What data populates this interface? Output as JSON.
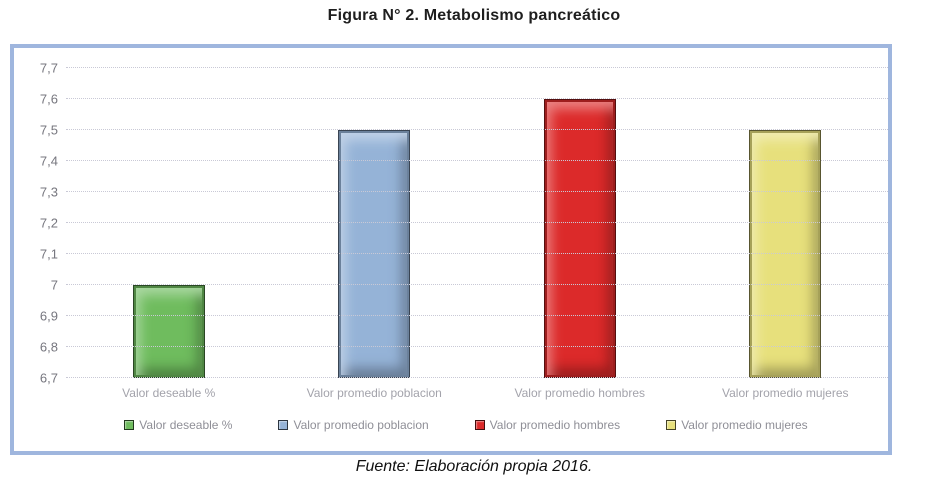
{
  "title": "Figura N° 2. Metabolismo pancreático",
  "source": "Fuente: Elaboración propia 2016.",
  "chart_data": {
    "type": "bar",
    "title": "Figura N° 2. Metabolismo pancreático",
    "categories": [
      "Valor deseable %",
      "Valor promedio poblacion",
      "Valor promedio hombres",
      "Valor promedio mujeres"
    ],
    "values": [
      7.0,
      7.5,
      7.6,
      7.5
    ],
    "series_colors": [
      "#6fbc5e",
      "#95b3d7",
      "#dc2a2a",
      "#e7e07c"
    ],
    "ylim": [
      6.7,
      7.7
    ],
    "yticks": [
      {
        "value": 7.7,
        "label": "7,7"
      },
      {
        "value": 7.6,
        "label": "7,6"
      },
      {
        "value": 7.5,
        "label": "7,5"
      },
      {
        "value": 7.4,
        "label": "7,4"
      },
      {
        "value": 7.3,
        "label": "7,3"
      },
      {
        "value": 7.2,
        "label": "7,2"
      },
      {
        "value": 7.1,
        "label": "7,1"
      },
      {
        "value": 7.0,
        "label": "7"
      },
      {
        "value": 6.9,
        "label": "6,9"
      },
      {
        "value": 6.8,
        "label": "6,8"
      },
      {
        "value": 6.7,
        "label": "6,7"
      }
    ],
    "legend": [
      "Valor deseable %",
      "Valor promedio poblacion",
      "Valor promedio hombres",
      "Valor promedio mujeres"
    ],
    "legend_position": "bottom",
    "grid": "horizontal-dotted",
    "xlabel": "",
    "ylabel": "",
    "frame_border_color": "#9fb6de",
    "source_note": "Fuente: Elaboración propia 2016."
  }
}
